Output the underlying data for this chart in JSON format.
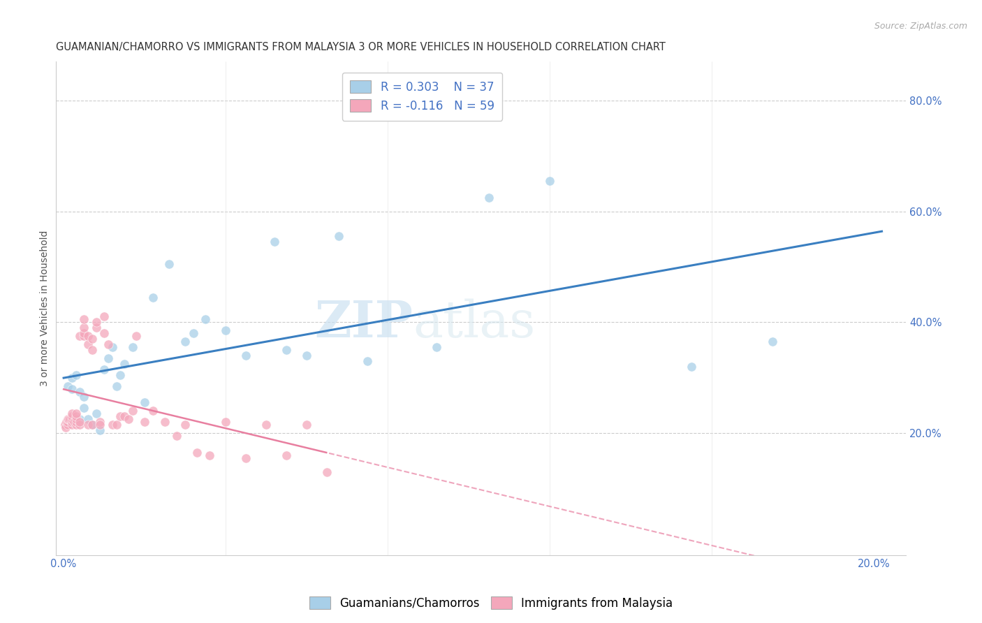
{
  "title": "GUAMANIAN/CHAMORRO VS IMMIGRANTS FROM MALAYSIA 3 OR MORE VEHICLES IN HOUSEHOLD CORRELATION CHART",
  "source": "Source: ZipAtlas.com",
  "ylabel": "3 or more Vehicles in Household",
  "right_yticks": [
    "80.0%",
    "60.0%",
    "40.0%",
    "20.0%"
  ],
  "right_ytick_vals": [
    0.8,
    0.6,
    0.4,
    0.2
  ],
  "xmin": -0.002,
  "xmax": 0.208,
  "ymin": -0.02,
  "ymax": 0.87,
  "blue_R": "R = 0.303",
  "blue_N": "N = 37",
  "pink_R": "R = -0.116",
  "pink_N": "N = 59",
  "legend_label_blue": "Guamanians/Chamorros",
  "legend_label_pink": "Immigrants from Malaysia",
  "blue_color": "#a8cfe8",
  "pink_color": "#f4a7bb",
  "blue_line_color": "#3a7fc1",
  "pink_line_color": "#e87fa0",
  "watermark_zip": "ZIP",
  "watermark_atlas": "atlas",
  "blue_scatter_x": [
    0.001,
    0.002,
    0.002,
    0.003,
    0.004,
    0.004,
    0.005,
    0.005,
    0.006,
    0.007,
    0.008,
    0.009,
    0.01,
    0.011,
    0.012,
    0.013,
    0.014,
    0.015,
    0.017,
    0.02,
    0.022,
    0.026,
    0.03,
    0.032,
    0.035,
    0.04,
    0.045,
    0.052,
    0.055,
    0.06,
    0.068,
    0.075,
    0.092,
    0.105,
    0.12,
    0.155,
    0.175
  ],
  "blue_scatter_y": [
    0.285,
    0.3,
    0.28,
    0.305,
    0.275,
    0.225,
    0.245,
    0.265,
    0.225,
    0.215,
    0.235,
    0.205,
    0.315,
    0.335,
    0.355,
    0.285,
    0.305,
    0.325,
    0.355,
    0.255,
    0.445,
    0.505,
    0.365,
    0.38,
    0.405,
    0.385,
    0.34,
    0.545,
    0.35,
    0.34,
    0.555,
    0.33,
    0.355,
    0.625,
    0.655,
    0.32,
    0.365
  ],
  "pink_scatter_x": [
    0.0003,
    0.0005,
    0.0007,
    0.001,
    0.001,
    0.001,
    0.0012,
    0.0015,
    0.002,
    0.002,
    0.002,
    0.002,
    0.002,
    0.0025,
    0.003,
    0.003,
    0.003,
    0.003,
    0.003,
    0.004,
    0.004,
    0.004,
    0.005,
    0.005,
    0.005,
    0.005,
    0.006,
    0.006,
    0.006,
    0.007,
    0.007,
    0.007,
    0.008,
    0.008,
    0.009,
    0.009,
    0.01,
    0.01,
    0.011,
    0.012,
    0.013,
    0.014,
    0.015,
    0.016,
    0.017,
    0.018,
    0.02,
    0.022,
    0.025,
    0.028,
    0.03,
    0.033,
    0.036,
    0.04,
    0.045,
    0.05,
    0.055,
    0.06,
    0.065
  ],
  "pink_scatter_y": [
    0.215,
    0.21,
    0.22,
    0.215,
    0.22,
    0.225,
    0.225,
    0.225,
    0.215,
    0.22,
    0.225,
    0.23,
    0.235,
    0.22,
    0.215,
    0.22,
    0.225,
    0.23,
    0.235,
    0.215,
    0.22,
    0.375,
    0.375,
    0.38,
    0.39,
    0.405,
    0.36,
    0.375,
    0.215,
    0.35,
    0.37,
    0.215,
    0.39,
    0.4,
    0.22,
    0.215,
    0.38,
    0.41,
    0.36,
    0.215,
    0.215,
    0.23,
    0.23,
    0.225,
    0.24,
    0.375,
    0.22,
    0.24,
    0.22,
    0.195,
    0.215,
    0.165,
    0.16,
    0.22,
    0.155,
    0.215,
    0.16,
    0.215,
    0.13
  ],
  "title_fontsize": 10.5,
  "source_fontsize": 9,
  "axis_label_fontsize": 10,
  "tick_fontsize": 10.5,
  "legend_fontsize": 12,
  "scatter_size": 90,
  "scatter_alpha": 0.75,
  "scatter_linewidth": 0.5
}
